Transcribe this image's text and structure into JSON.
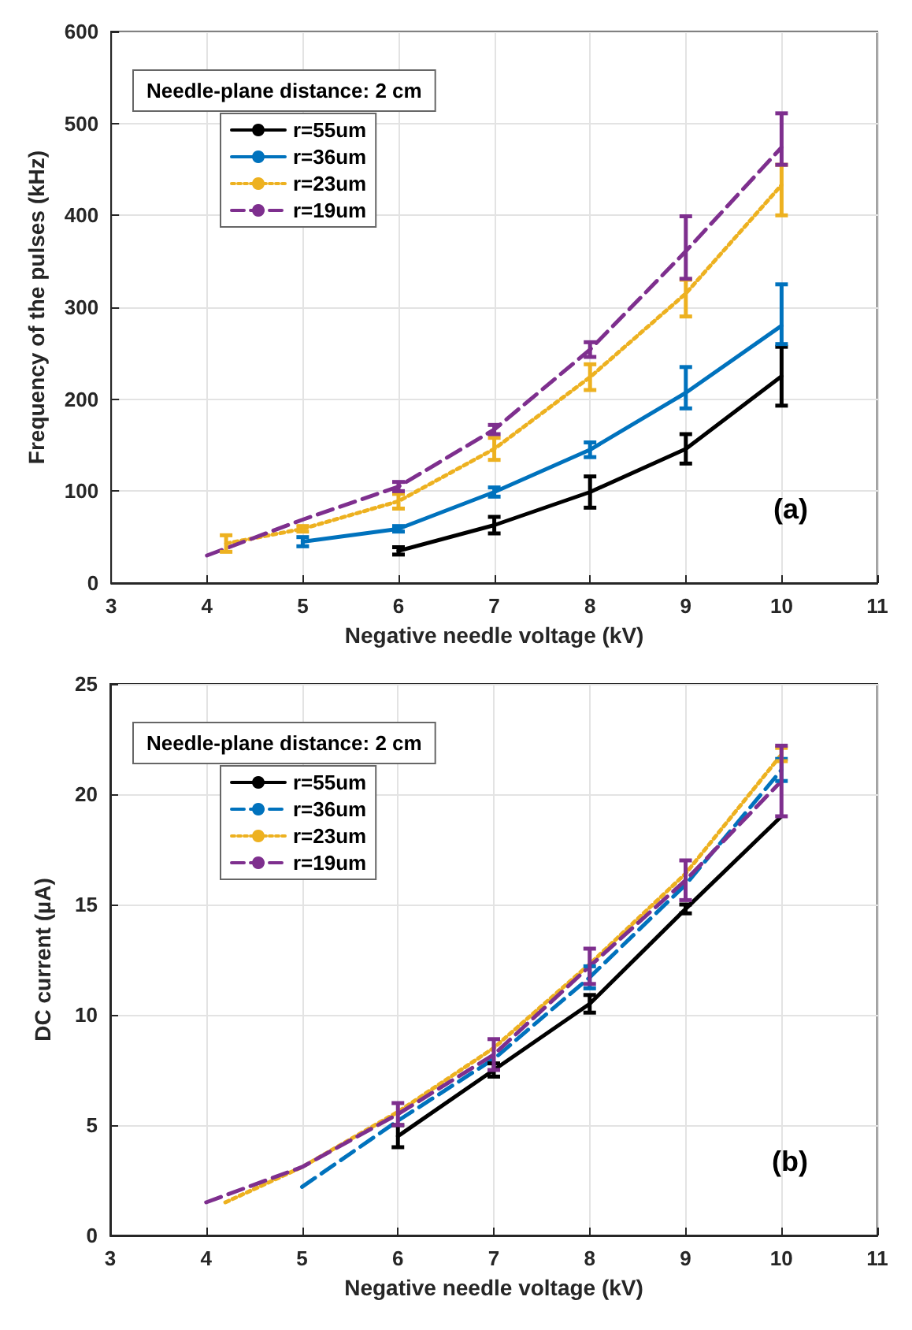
{
  "chart_data": [
    {
      "type": "line",
      "xlabel": "Negative needle voltage (kV)",
      "ylabel": "Frequency of the pulses (kHz)",
      "annotations": [
        "Needle-plane distance: 2 cm",
        "(a)"
      ],
      "xlim": [
        3,
        11
      ],
      "xticks": [
        3,
        4,
        5,
        6,
        7,
        8,
        9,
        10,
        11
      ],
      "ylim": [
        0,
        600
      ],
      "yticks": [
        0,
        100,
        200,
        300,
        400,
        500,
        600
      ],
      "grid": true,
      "legend": "top left",
      "marker": "none",
      "series": [
        {
          "name": "r=55um",
          "color": "#000000",
          "line_style": "solid",
          "x": [
            6,
            7,
            8,
            9,
            10
          ],
          "values": [
            35,
            63,
            99,
            146,
            225
          ],
          "errors": [
            4,
            9,
            17,
            16,
            32
          ]
        },
        {
          "name": "r=36um",
          "color": "#0072bd",
          "line_style": "solid",
          "x": [
            5,
            6,
            7,
            8,
            9,
            10
          ],
          "values": [
            45,
            59,
            99,
            145,
            207,
            280
          ],
          "errors": [
            5,
            3,
            5,
            8,
            [
              190,
              235
            ],
            [
              260,
              325
            ]
          ]
        },
        {
          "name": "r=23um",
          "color": "#edb120",
          "line_style": "dotted",
          "x": [
            4.2,
            5,
            6,
            7,
            8,
            9,
            10
          ],
          "values": [
            43,
            59,
            89,
            146,
            224,
            315,
            433
          ],
          "errors": [
            9,
            3,
            8,
            12,
            14,
            [
              290,
              330
            ],
            [
              400,
              455
            ]
          ]
        },
        {
          "name": "r=19um",
          "color": "#7e2f8e",
          "line_style": "dashed",
          "x": [
            4,
            5,
            6,
            7,
            8,
            9,
            10
          ],
          "values": [
            30,
            69,
            105,
            167,
            254,
            361,
            474
          ],
          "errors": [
            null,
            null,
            5,
            5,
            8,
            [
              331,
              399
            ],
            [
              455,
              511
            ]
          ]
        }
      ]
    },
    {
      "type": "line",
      "xlabel": "Negative needle voltage (kV)",
      "ylabel": "DC current (µA)",
      "annotations": [
        "Needle-plane distance: 2 cm",
        "(b)"
      ],
      "xlim": [
        3,
        11
      ],
      "xticks": [
        3,
        4,
        5,
        6,
        7,
        8,
        9,
        10,
        11
      ],
      "ylim": [
        0,
        25
      ],
      "yticks": [
        0,
        5,
        10,
        15,
        20,
        25
      ],
      "grid": true,
      "legend": "top left",
      "marker": "none",
      "series": [
        {
          "name": "r=55um",
          "color": "#000000",
          "line_style": "solid",
          "x": [
            6,
            7,
            8,
            9,
            10
          ],
          "values": [
            4.5,
            7.5,
            10.5,
            14.8,
            19
          ],
          "errors": [
            0.5,
            0.3,
            0.4,
            0.2,
            null
          ]
        },
        {
          "name": "r=36um",
          "color": "#0072bd",
          "line_style": "dashed",
          "x": [
            5,
            6,
            7,
            8,
            9,
            10
          ],
          "values": [
            2.2,
            5.2,
            8,
            11.7,
            15.9,
            21.1
          ],
          "errors": [
            null,
            null,
            null,
            0.5,
            null,
            0.5
          ]
        },
        {
          "name": "r=23um",
          "color": "#edb120",
          "line_style": "dotted",
          "x": [
            4.2,
            5,
            6,
            7,
            8,
            9,
            10
          ],
          "values": [
            1.5,
            3.1,
            5.6,
            8.5,
            12.3,
            16.4,
            21.8
          ],
          "errors": [
            null,
            null,
            null,
            null,
            null,
            null,
            0.3
          ]
        },
        {
          "name": "r=19um",
          "color": "#7e2f8e",
          "line_style": "dashed",
          "x": [
            4,
            5,
            6,
            7,
            8,
            9,
            10
          ],
          "values": [
            1.5,
            3.1,
            5.5,
            8.2,
            12.2,
            16.1,
            20.6
          ],
          "errors": [
            null,
            null,
            0.5,
            0.7,
            0.8,
            0.9,
            [
              19,
              22.2
            ]
          ]
        }
      ]
    }
  ]
}
